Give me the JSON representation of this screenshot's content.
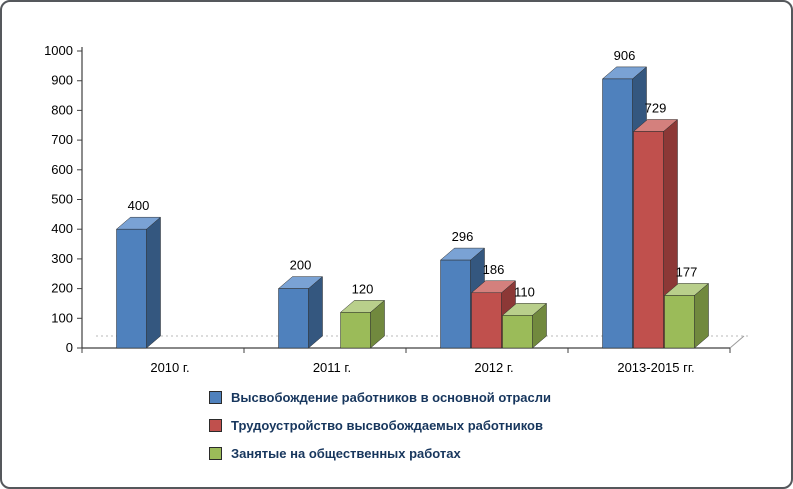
{
  "figure": {
    "background": "#ffffff",
    "border_color": "#55585c"
  },
  "chart_data": {
    "type": "bar",
    "projection": "3d",
    "title": "",
    "xlabel": "",
    "ylabel": "",
    "categories": [
      "2010 г.",
      "2011 г.",
      "2012 г.",
      "2013-2015 гг."
    ],
    "series": [
      {
        "name": "Высвобождение работников в основной отрасли",
        "color": "#4F81BD",
        "color_top": "#7AA2D4",
        "color_side": "#34577F",
        "values": [
          400,
          200,
          296,
          906
        ]
      },
      {
        "name": "Трудоустройство высвобождаемых работников",
        "color": "#C0504D",
        "color_top": "#D4807D",
        "color_side": "#8C3836",
        "values": [
          null,
          null,
          186,
          729
        ]
      },
      {
        "name": "Занятые на общественных работах",
        "color": "#9BBB59",
        "color_top": "#B9CF8B",
        "color_side": "#71893E",
        "values": [
          null,
          120,
          110,
          177
        ]
      }
    ],
    "ylim": [
      0,
      1000
    ],
    "ytick_step": 100,
    "yticks": [
      0,
      100,
      200,
      300,
      400,
      500,
      600,
      700,
      800,
      900,
      1000
    ],
    "grid": false,
    "legend_position": "bottom",
    "value_labels_shown": true,
    "axis_color": "#404040",
    "floor_line_color": "#b8b8b8",
    "text_color": "#000000"
  }
}
